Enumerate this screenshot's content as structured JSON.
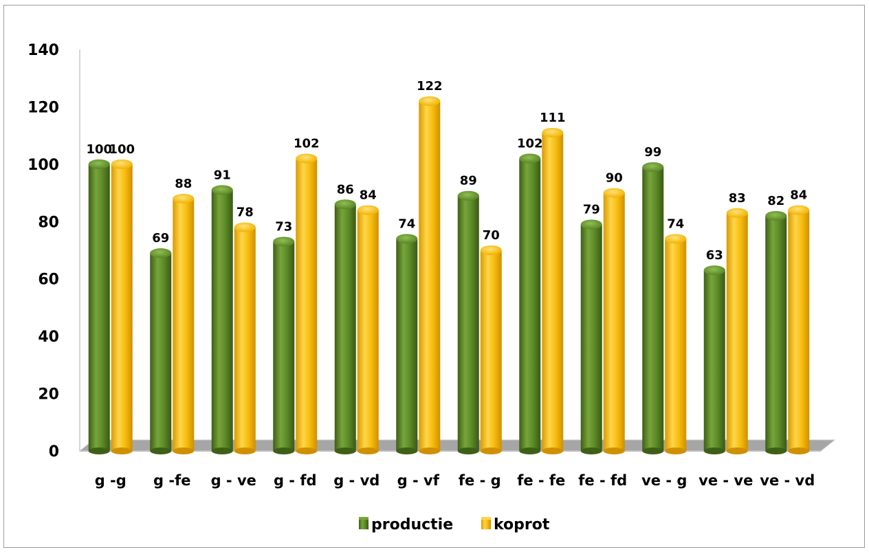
{
  "chart_data": {
    "type": "bar",
    "categories": [
      "g -g",
      "g -fe",
      "g - ve",
      "g - fd",
      "g - vd",
      "g - vf",
      "fe - g",
      "fe - fe",
      "fe - fd",
      "ve - g",
      "ve - ve",
      "ve - vd"
    ],
    "series": [
      {
        "name": "productie",
        "color": "#5f8a2a",
        "values": [
          100,
          69,
          91,
          73,
          86,
          74,
          89,
          102,
          79,
          99,
          63,
          82
        ]
      },
      {
        "name": "koprot",
        "color": "#f5b800",
        "values": [
          100,
          88,
          78,
          102,
          84,
          122,
          70,
          111,
          90,
          74,
          83,
          84
        ]
      }
    ],
    "y_ticks": [
      "0",
      "20",
      "40",
      "60",
      "80",
      "100",
      "120",
      "140"
    ],
    "ylim": [
      0,
      140
    ],
    "legend_position": "bottom",
    "grid": false,
    "floor_color": "#a6a6a6"
  }
}
